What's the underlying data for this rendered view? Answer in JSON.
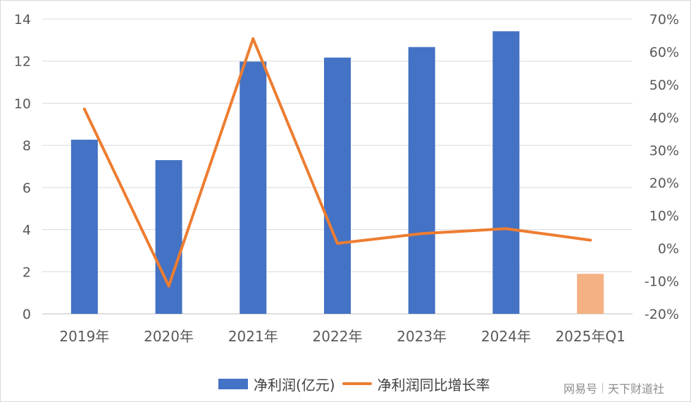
{
  "chart_data": {
    "type": "bar",
    "categories": [
      "2019年",
      "2020年",
      "2021年",
      "2022年",
      "2023年",
      "2024年",
      "2025年Q1"
    ],
    "series": [
      {
        "name": "净利润(亿元)",
        "type": "bar",
        "axis": "left",
        "values": [
          8.27,
          7.3,
          11.98,
          12.17,
          12.67,
          13.42,
          1.9
        ],
        "color": "#4472C4",
        "point_colors": [
          "#4472C4",
          "#4472C4",
          "#4472C4",
          "#4472C4",
          "#4472C4",
          "#4472C4",
          "#F4B183"
        ]
      },
      {
        "name": "净利润同比增长率",
        "type": "line",
        "axis": "right",
        "values": [
          42.5,
          -11.5,
          64.0,
          1.5,
          4.5,
          6.0,
          2.5
        ],
        "color": "#ED7D31"
      }
    ],
    "y_left": {
      "min": 0,
      "max": 14,
      "ticks": [
        "0",
        "2",
        "4",
        "6",
        "8",
        "10",
        "12",
        "14"
      ]
    },
    "y_right": {
      "min": -20,
      "max": 70,
      "ticks": [
        "-20%",
        "-10%",
        "0%",
        "10%",
        "20%",
        "30%",
        "40%",
        "50%",
        "60%",
        "70%"
      ]
    },
    "grid": true,
    "legend": "bottom"
  },
  "watermark": {
    "left": "网易号",
    "right": "天下财道社"
  }
}
